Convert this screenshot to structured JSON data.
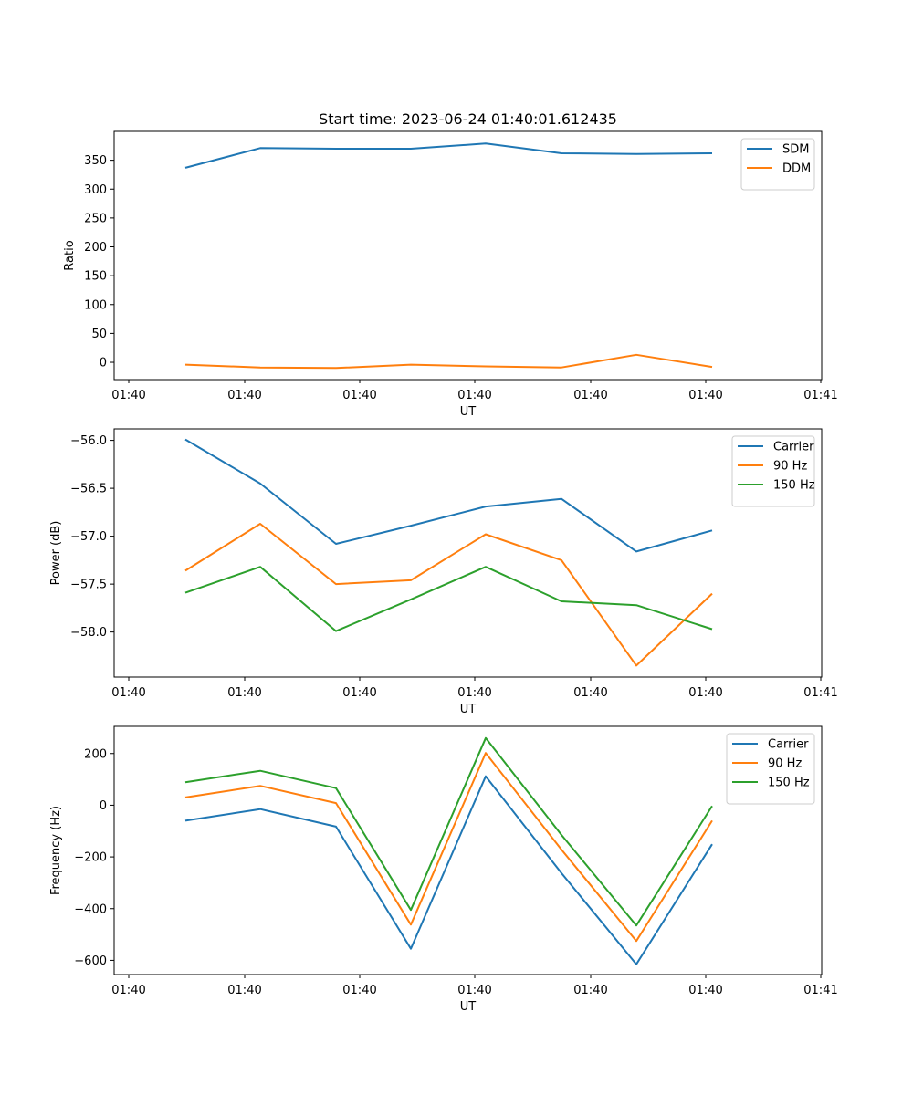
{
  "chart_data": [
    {
      "type": "line",
      "title": "Start time: 2023-06-24 01:40:01.612435",
      "xlabel": "UT",
      "ylabel": "Ratio",
      "x_tick_labels": [
        "01:40",
        "01:40",
        "01:40",
        "01:40",
        "01:40",
        "01:40",
        "01:40",
        "01:41"
      ],
      "y_ticks": [
        0,
        50,
        100,
        150,
        200,
        250,
        300,
        350
      ],
      "ylim": [
        -30,
        400
      ],
      "legend_position": "top-right",
      "series": [
        {
          "name": "SDM",
          "color": "#1f77b4",
          "values": [
            337,
            371,
            370,
            370,
            379,
            362,
            361,
            362
          ]
        },
        {
          "name": "DDM",
          "color": "#ff7f0e",
          "values": [
            -4,
            -9,
            -10,
            -4,
            -7,
            -9,
            13,
            -8
          ]
        }
      ]
    },
    {
      "type": "line",
      "title": "",
      "xlabel": "UT",
      "ylabel": "Power (dB)",
      "x_tick_labels": [
        "01:40",
        "01:40",
        "01:40",
        "01:40",
        "01:40",
        "01:40",
        "01:40",
        "01:41"
      ],
      "y_ticks": [
        -56.0,
        -56.5,
        -57.0,
        -57.5,
        -58.0
      ],
      "y_tick_labels": [
        "−56.0",
        "−56.5",
        "−57.0",
        "−57.5",
        "−58.0"
      ],
      "ylim": [
        -58.47,
        -55.88
      ],
      "legend_position": "top-right",
      "series": [
        {
          "name": "Carrier",
          "color": "#1f77b4",
          "values": [
            -55.99,
            -56.45,
            -57.08,
            -56.89,
            -56.69,
            -56.61,
            -57.16,
            -56.94
          ]
        },
        {
          "name": "90 Hz",
          "color": "#ff7f0e",
          "values": [
            -57.36,
            -56.87,
            -57.5,
            -57.46,
            -56.98,
            -57.25,
            -58.35,
            -57.6
          ]
        },
        {
          "name": "150 Hz",
          "color": "#2ca02c",
          "values": [
            -57.59,
            -57.32,
            -57.99,
            -57.66,
            -57.32,
            -57.68,
            -57.72,
            -57.97
          ]
        }
      ]
    },
    {
      "type": "line",
      "title": "",
      "xlabel": "UT",
      "ylabel": "Frequency (Hz)",
      "x_tick_labels": [
        "01:40",
        "01:40",
        "01:40",
        "01:40",
        "01:40",
        "01:40",
        "01:40",
        "01:41"
      ],
      "y_ticks": [
        200,
        0,
        -200,
        -400,
        -600
      ],
      "y_tick_labels": [
        "200",
        "0",
        "−200",
        "−400",
        "−600"
      ],
      "ylim": [
        -655,
        305
      ],
      "legend_position": "top-right",
      "series": [
        {
          "name": "Carrier",
          "color": "#1f77b4",
          "values": [
            -60,
            -15,
            -83,
            -555,
            112,
            -263,
            -615,
            -151
          ]
        },
        {
          "name": "90 Hz",
          "color": "#ff7f0e",
          "values": [
            30,
            75,
            8,
            -462,
            202,
            -172,
            -525,
            -60
          ]
        },
        {
          "name": "150 Hz",
          "color": "#2ca02c",
          "values": [
            89,
            133,
            66,
            -405,
            260,
            -115,
            -465,
            -3
          ]
        }
      ]
    }
  ]
}
